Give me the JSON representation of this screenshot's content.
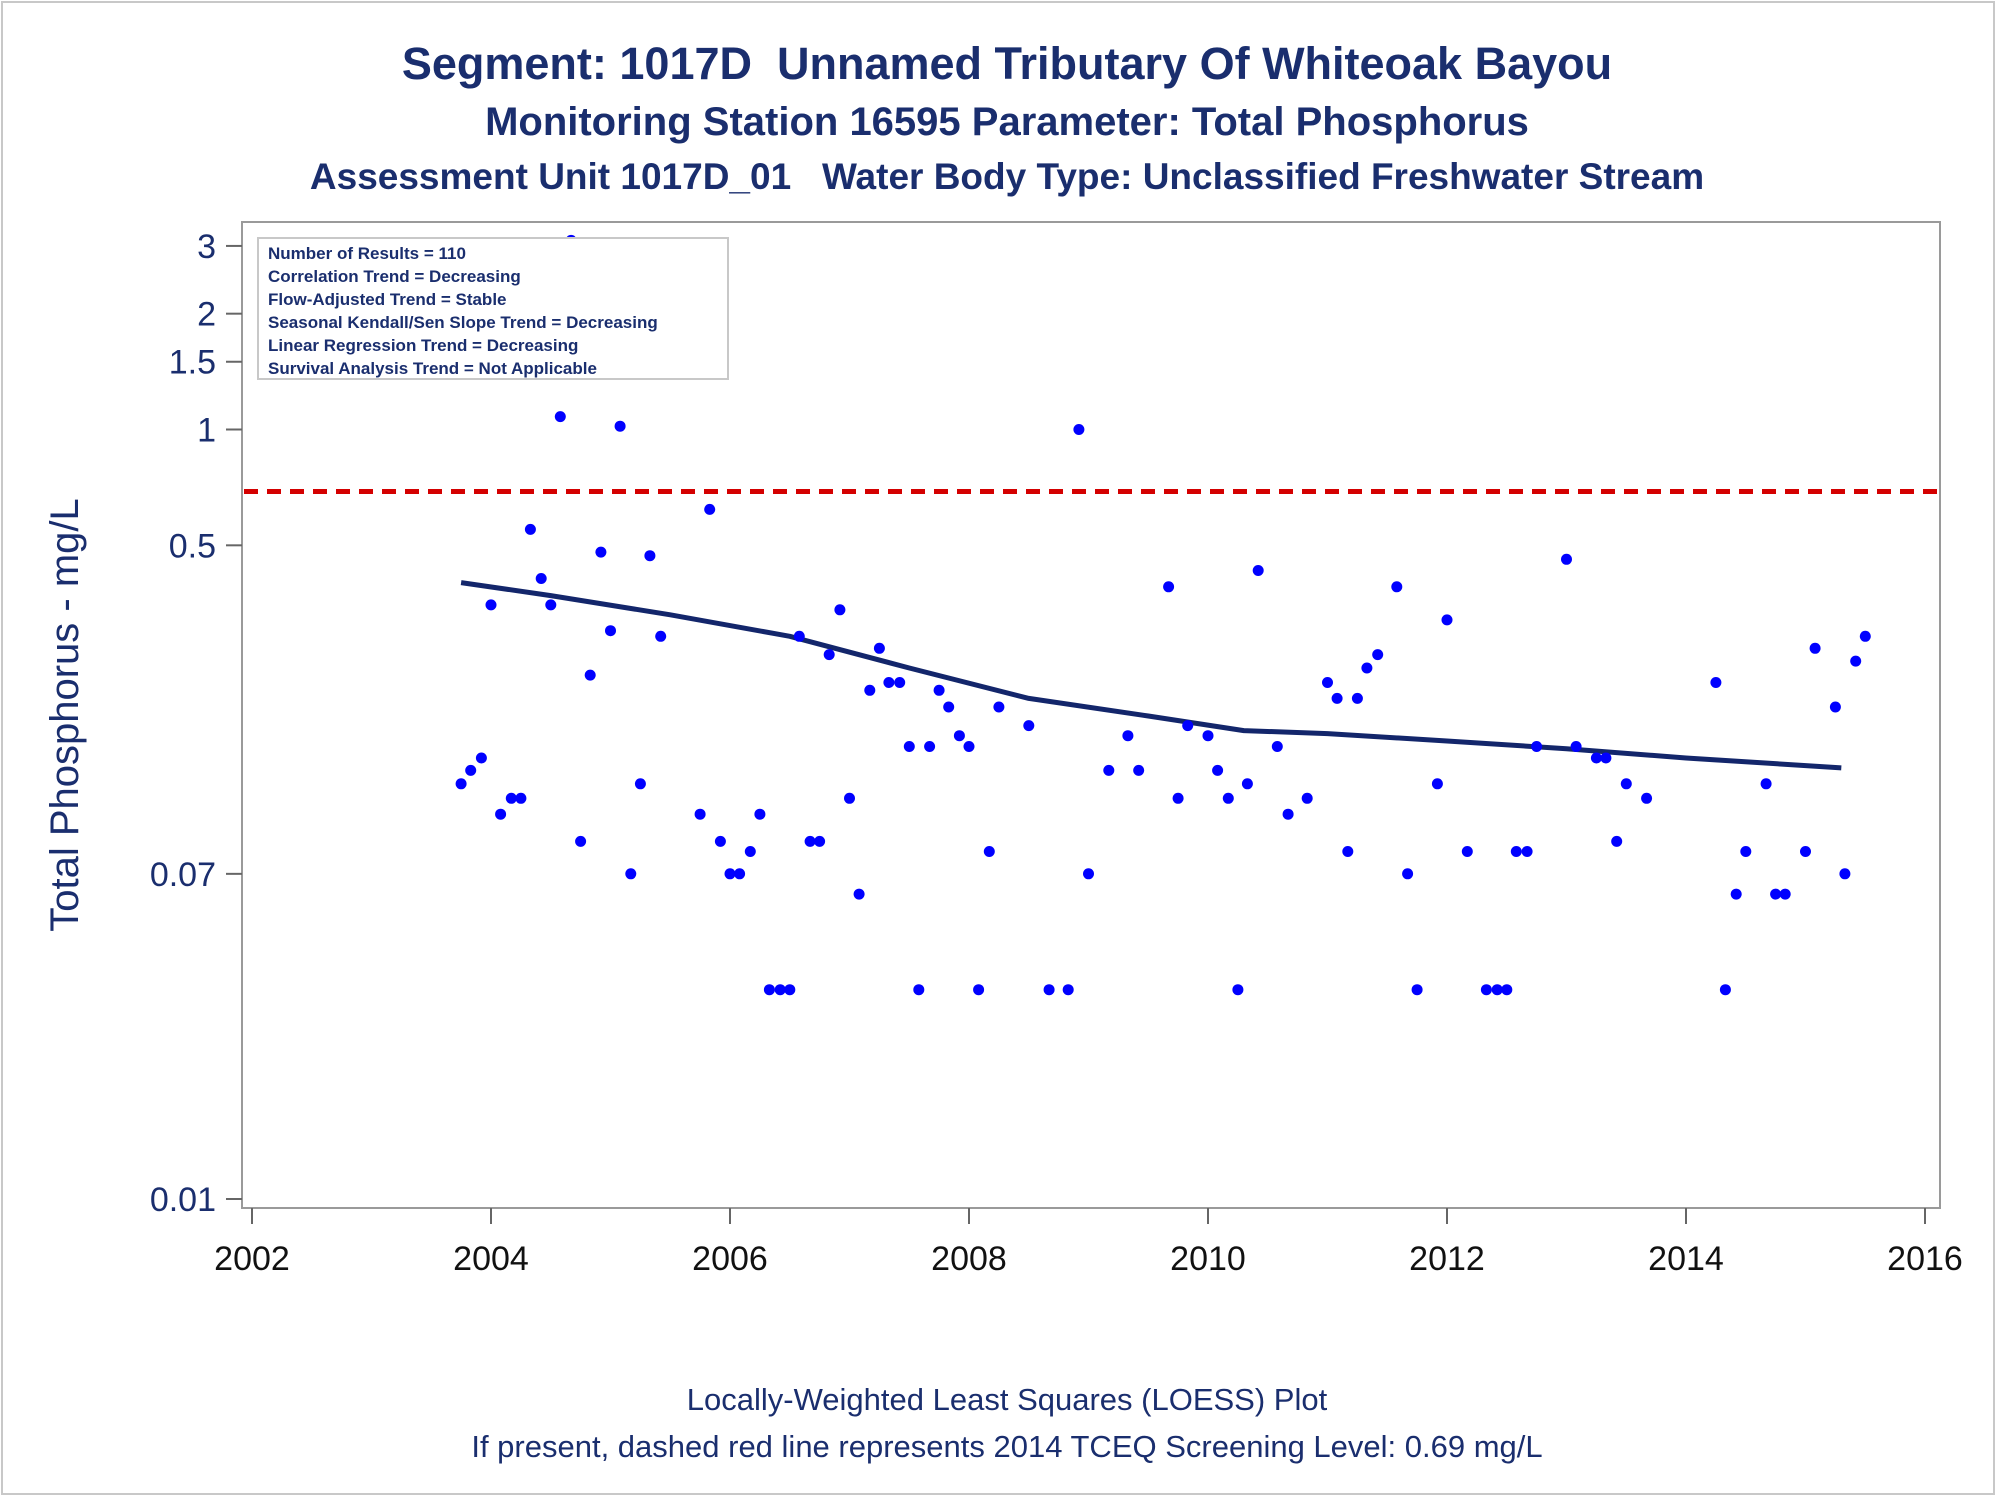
{
  "chart_data": {
    "type": "scatter",
    "title": "Segment: 1017D  Unnamed Tributary Of Whiteoak Bayou",
    "subtitle": "Monitoring Station 16595 Parameter: Total Phosphorus",
    "subtitle2": "Assessment Unit 1017D_01   Water Body Type: Unclassified Freshwater Stream",
    "ylabel": "Total Phosphorus - mg/L",
    "xlabel": "",
    "yscale": "log",
    "ylim": [
      0.01,
      3.3
    ],
    "xlim": [
      2002,
      2016
    ],
    "xticks": [
      2002,
      2004,
      2006,
      2008,
      2010,
      2012,
      2014,
      2016
    ],
    "yticks": [
      0.01,
      0.07,
      0.5,
      1,
      1.5,
      2,
      3
    ],
    "ytick_labels": [
      "0.01",
      "0.07",
      "0.5",
      "1",
      "1.5",
      "2",
      "3"
    ],
    "footnote1": "Locally-Weighted Least Squares (LOESS) Plot",
    "footnote2": "If present, dashed red line represents 2014 TCEQ Screening Level: 0.69 mg/L",
    "screening_level": 0.69,
    "colors": {
      "points": "#0000ff",
      "loess": "#13266b",
      "screening": "#d40000",
      "text": "#1a2e6e"
    },
    "inset": [
      "Number of Results = 110",
      "Correlation Trend = Decreasing",
      "Flow-Adjusted Trend = Stable",
      "Seasonal Kendall/Sen Slope Trend = Decreasing",
      "Linear Regression Trend = Decreasing",
      "Survival Analysis Trend = Not Applicable"
    ],
    "loess": [
      [
        2003.75,
        0.4
      ],
      [
        2004.5,
        0.37
      ],
      [
        2005.5,
        0.33
      ],
      [
        2006.5,
        0.29
      ],
      [
        2007.5,
        0.24
      ],
      [
        2008.5,
        0.2
      ],
      [
        2009.5,
        0.18
      ],
      [
        2010.3,
        0.165
      ],
      [
        2011.0,
        0.162
      ],
      [
        2012.0,
        0.155
      ],
      [
        2013.0,
        0.148
      ],
      [
        2014.0,
        0.14
      ],
      [
        2015.3,
        0.132
      ]
    ],
    "points": [
      [
        2003.75,
        0.12
      ],
      [
        2003.83,
        0.13
      ],
      [
        2003.92,
        0.14
      ],
      [
        2004.0,
        0.35
      ],
      [
        2004.08,
        0.1
      ],
      [
        2004.17,
        0.11
      ],
      [
        2004.25,
        0.11
      ],
      [
        2004.33,
        0.55
      ],
      [
        2004.42,
        0.41
      ],
      [
        2004.5,
        0.35
      ],
      [
        2004.58,
        1.08
      ],
      [
        2004.67,
        3.1
      ],
      [
        2004.75,
        0.085
      ],
      [
        2004.83,
        0.23
      ],
      [
        2004.92,
        0.48
      ],
      [
        2005.0,
        0.3
      ],
      [
        2005.08,
        1.02
      ],
      [
        2005.17,
        0.07
      ],
      [
        2005.25,
        0.12
      ],
      [
        2005.33,
        0.47
      ],
      [
        2005.42,
        0.29
      ],
      [
        2005.75,
        0.1
      ],
      [
        2005.83,
        0.62
      ],
      [
        2005.92,
        0.085
      ],
      [
        2006.0,
        0.07
      ],
      [
        2006.08,
        0.07
      ],
      [
        2006.17,
        0.08
      ],
      [
        2006.25,
        0.1
      ],
      [
        2006.33,
        0.035
      ],
      [
        2006.42,
        0.035
      ],
      [
        2006.5,
        0.035
      ],
      [
        2006.58,
        0.29
      ],
      [
        2006.67,
        0.085
      ],
      [
        2006.75,
        0.085
      ],
      [
        2006.83,
        0.26
      ],
      [
        2006.92,
        0.34
      ],
      [
        2007.0,
        0.11
      ],
      [
        2007.08,
        0.062
      ],
      [
        2007.17,
        0.21
      ],
      [
        2007.25,
        0.27
      ],
      [
        2007.33,
        0.22
      ],
      [
        2007.42,
        0.22
      ],
      [
        2007.5,
        0.15
      ],
      [
        2007.58,
        0.035
      ],
      [
        2007.67,
        0.15
      ],
      [
        2007.75,
        0.21
      ],
      [
        2007.83,
        0.19
      ],
      [
        2007.92,
        0.16
      ],
      [
        2008.0,
        0.15
      ],
      [
        2008.08,
        0.035
      ],
      [
        2008.17,
        0.08
      ],
      [
        2008.25,
        0.19
      ],
      [
        2008.5,
        0.17
      ],
      [
        2008.67,
        0.035
      ],
      [
        2008.83,
        0.035
      ],
      [
        2008.92,
        1.0
      ],
      [
        2009.0,
        0.07
      ],
      [
        2009.17,
        0.13
      ],
      [
        2009.33,
        0.16
      ],
      [
        2009.42,
        0.13
      ],
      [
        2009.67,
        0.39
      ],
      [
        2009.75,
        0.11
      ],
      [
        2009.83,
        0.17
      ],
      [
        2010.0,
        0.16
      ],
      [
        2010.08,
        0.13
      ],
      [
        2010.17,
        0.11
      ],
      [
        2010.25,
        0.035
      ],
      [
        2010.33,
        0.12
      ],
      [
        2010.42,
        0.43
      ],
      [
        2010.58,
        0.15
      ],
      [
        2010.67,
        0.1
      ],
      [
        2010.83,
        0.11
      ],
      [
        2011.0,
        0.22
      ],
      [
        2011.08,
        0.2
      ],
      [
        2011.17,
        0.08
      ],
      [
        2011.25,
        0.2
      ],
      [
        2011.33,
        0.24
      ],
      [
        2011.42,
        0.26
      ],
      [
        2011.58,
        0.39
      ],
      [
        2011.67,
        0.07
      ],
      [
        2011.75,
        0.035
      ],
      [
        2011.92,
        0.12
      ],
      [
        2012.0,
        0.32
      ],
      [
        2012.17,
        0.08
      ],
      [
        2012.33,
        0.035
      ],
      [
        2012.42,
        0.035
      ],
      [
        2012.5,
        0.035
      ],
      [
        2012.58,
        0.08
      ],
      [
        2012.67,
        0.08
      ],
      [
        2012.75,
        0.15
      ],
      [
        2013.0,
        0.46
      ],
      [
        2013.08,
        0.15
      ],
      [
        2013.25,
        0.14
      ],
      [
        2013.33,
        0.14
      ],
      [
        2013.42,
        0.085
      ],
      [
        2013.5,
        0.12
      ],
      [
        2013.67,
        0.11
      ],
      [
        2014.25,
        0.22
      ],
      [
        2014.33,
        0.035
      ],
      [
        2014.42,
        0.062
      ],
      [
        2014.5,
        0.08
      ],
      [
        2014.67,
        0.12
      ],
      [
        2014.75,
        0.062
      ],
      [
        2014.83,
        0.062
      ],
      [
        2015.0,
        0.08
      ],
      [
        2015.08,
        0.27
      ],
      [
        2015.25,
        0.19
      ],
      [
        2015.33,
        0.07
      ],
      [
        2015.42,
        0.25
      ],
      [
        2015.5,
        0.29
      ]
    ]
  }
}
